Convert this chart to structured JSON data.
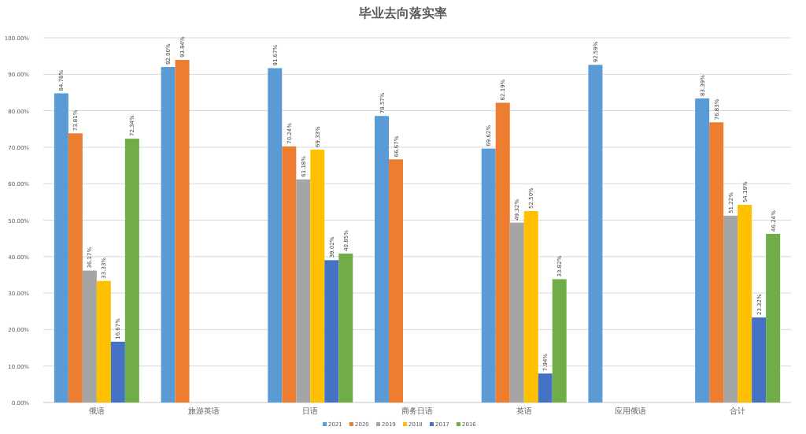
{
  "chart_data": {
    "type": "bar",
    "title": "毕业去向落实率",
    "categories": [
      "俄语",
      "旅游英语",
      "日语",
      "商务日语",
      "英语",
      "应用俄语",
      "合计"
    ],
    "series": [
      {
        "name": "2021",
        "color": "#5b9bd5",
        "values": [
          84.78,
          92.0,
          91.67,
          78.57,
          69.62,
          92.59,
          83.39
        ],
        "value_labels": [
          "84.78%",
          "92.00%",
          "91.67%",
          "78.57%",
          "69.62%",
          "92.59%",
          "83.39%"
        ]
      },
      {
        "name": "2020",
        "color": "#ed7d31",
        "values": [
          73.81,
          93.94,
          70.24,
          66.67,
          82.19,
          null,
          76.83
        ],
        "value_labels": [
          "73.81%",
          "93.94%",
          "70.24%",
          "66.67%",
          "82.19%",
          null,
          "76.83%"
        ]
      },
      {
        "name": "2019",
        "color": "#a5a5a5",
        "values": [
          36.17,
          null,
          61.18,
          null,
          49.32,
          null,
          51.22
        ],
        "value_labels": [
          "36.17%",
          null,
          "61.18%",
          null,
          "49.32%",
          null,
          "51.22%"
        ]
      },
      {
        "name": "2018",
        "color": "#ffc000",
        "values": [
          33.33,
          null,
          69.33,
          null,
          52.5,
          null,
          54.19
        ],
        "value_labels": [
          "33.33%",
          null,
          "69.33%",
          null,
          "52.50%",
          null,
          "54.19%"
        ]
      },
      {
        "name": "2017",
        "color": "#4472c4",
        "values": [
          16.67,
          null,
          39.02,
          null,
          7.94,
          null,
          23.32
        ],
        "value_labels": [
          "16.67%",
          null,
          "39.02%",
          null,
          "7.94%",
          null,
          "23.32%"
        ]
      },
      {
        "name": "2016",
        "color": "#70ad47",
        "values": [
          72.34,
          null,
          40.85,
          null,
          33.82,
          null,
          46.24
        ],
        "value_labels": [
          "72.34%",
          null,
          "40.85%",
          null,
          "33.82%",
          null,
          "46.24%"
        ]
      }
    ],
    "ylim": [
      0,
      100
    ],
    "yticks": [
      {
        "value": 0,
        "label": "0.00%"
      },
      {
        "value": 10,
        "label": "10.00%"
      },
      {
        "value": 20,
        "label": "20.00%"
      },
      {
        "value": 30,
        "label": "30.00%"
      },
      {
        "value": 40,
        "label": "40.00%"
      },
      {
        "value": 50,
        "label": "50.00%"
      },
      {
        "value": 60,
        "label": "60.00%"
      },
      {
        "value": 70,
        "label": "70.00%"
      },
      {
        "value": 80,
        "label": "80.00%"
      },
      {
        "value": 90,
        "label": "90.00%"
      },
      {
        "value": 100,
        "label": "100.00%"
      }
    ],
    "grid": "y",
    "legend": "bottom"
  }
}
